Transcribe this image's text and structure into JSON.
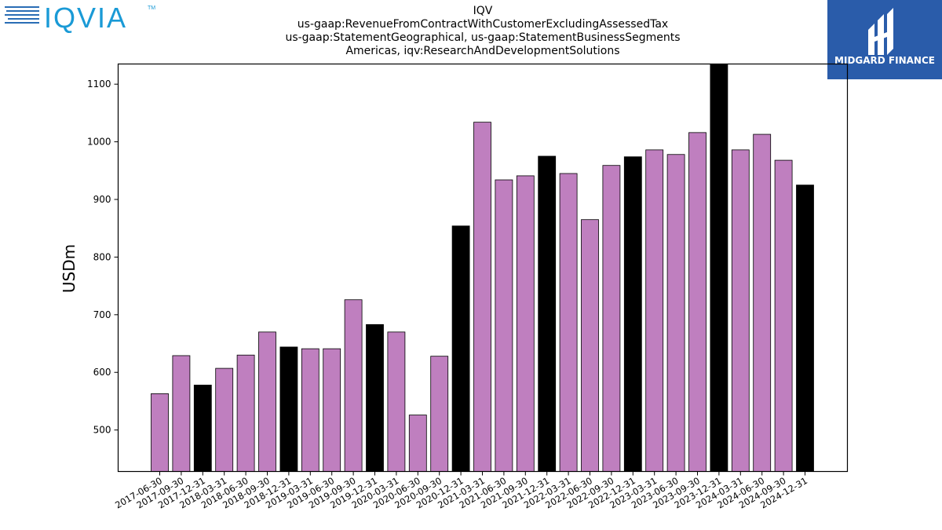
{
  "logos": {
    "left_text": "IQVIA",
    "right_text": "MIDGARD FINANCE"
  },
  "chart_data": {
    "type": "bar",
    "title_lines": [
      "IQV",
      "us-gaap:RevenueFromContractWithCustomerExcludingAssessedTax",
      "us-gaap:StatementGeographical, us-gaap:StatementBusinessSegments",
      "Americas, iqv:ResearchAndDevelopmentSolutions"
    ],
    "ylabel": "USDm",
    "xlabel": "",
    "ylim": [
      428,
      1135
    ],
    "yticks": [
      500,
      600,
      700,
      800,
      900,
      1000,
      1100
    ],
    "grid": false,
    "colors": {
      "quarter": "#bf7fbf",
      "year_end": "#000000",
      "edge": "#000000"
    },
    "categories": [
      "2017-06-30",
      "2017-09-30",
      "2017-12-31",
      "2018-03-31",
      "2018-06-30",
      "2018-09-30",
      "2018-12-31",
      "2019-03-31",
      "2019-06-30",
      "2019-09-30",
      "2019-12-31",
      "2020-03-31",
      "2020-06-30",
      "2020-09-30",
      "2020-12-31",
      "2021-03-31",
      "2021-06-30",
      "2021-09-30",
      "2021-12-31",
      "2022-03-31",
      "2022-06-30",
      "2022-09-30",
      "2022-12-31",
      "2023-03-31",
      "2023-06-30",
      "2023-09-30",
      "2023-12-31",
      "2024-03-31",
      "2024-06-30",
      "2024-09-30",
      "2024-12-31"
    ],
    "values": [
      563,
      629,
      578,
      607,
      630,
      670,
      644,
      641,
      641,
      726,
      683,
      670,
      526,
      628,
      854,
      1034,
      934,
      941,
      975,
      945,
      865,
      959,
      974,
      986,
      978,
      1016,
      1135,
      986,
      1013,
      968,
      925
    ]
  }
}
